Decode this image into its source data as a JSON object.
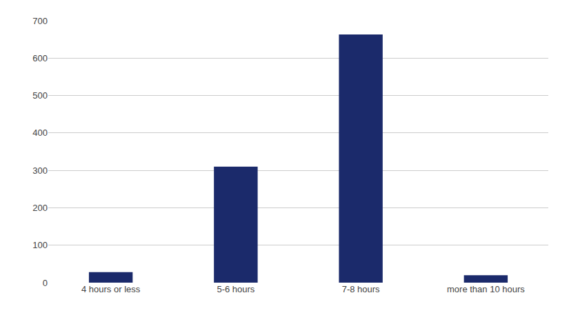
{
  "chart_data": {
    "type": "bar",
    "categories": [
      "4 hours or less",
      "5-6 hours",
      "7-8 hours",
      "more than 10 hours"
    ],
    "values": [
      28,
      310,
      663,
      20
    ],
    "color": "#1b2a6b",
    "ylim": [
      0,
      700
    ],
    "yticks": [
      0,
      100,
      200,
      300,
      400,
      500,
      600,
      700
    ],
    "grid": true
  }
}
